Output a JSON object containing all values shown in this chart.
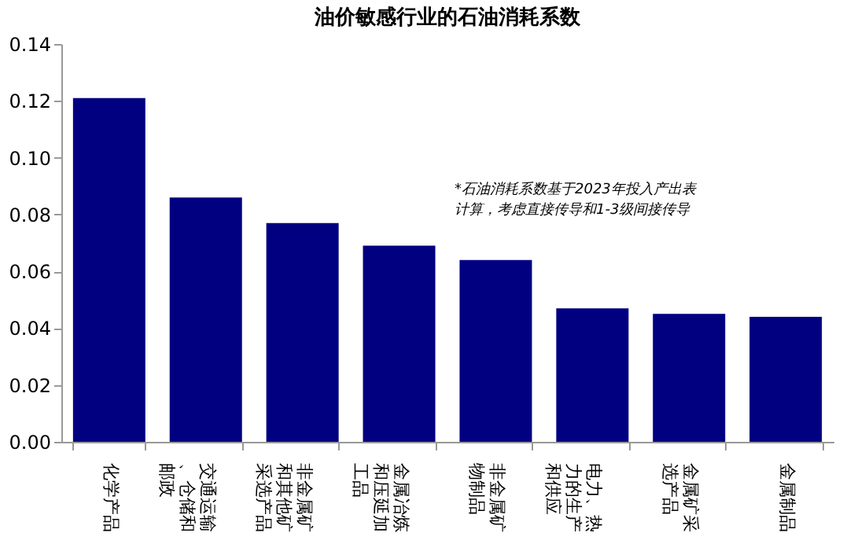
{
  "chart_data": {
    "type": "bar",
    "title": "油价敏感行业的石油消耗系数",
    "categories": [
      "化学产品",
      "交通运输、仓储和邮政",
      "非金属矿和其他矿采选产品",
      "金属冶炼和压延加工品",
      "非金属矿物制品",
      "电力、热力的生产和供应",
      "金属矿采选产品",
      "金属制品"
    ],
    "values": [
      0.121,
      0.086,
      0.077,
      0.069,
      0.064,
      0.047,
      0.045,
      0.044
    ],
    "color": "#000080",
    "ylim": [
      0,
      0.14
    ],
    "yticks": [
      {
        "value": 0,
        "label": "0.00"
      },
      {
        "value": 0.02,
        "label": "0.02"
      },
      {
        "value": 0.04,
        "label": "0.04"
      },
      {
        "value": 0.06,
        "label": "0.06"
      },
      {
        "value": 0.08,
        "label": "0.08"
      },
      {
        "value": 0.1,
        "label": "0.10"
      },
      {
        "value": 0.12,
        "label": "0.12"
      },
      {
        "value": 0.14,
        "label": "0.14"
      }
    ],
    "grid": false,
    "annotations": [
      "*石油消耗系数基于2023年投入产出表计算，考虑直接传导和1-3级间接传导"
    ]
  }
}
